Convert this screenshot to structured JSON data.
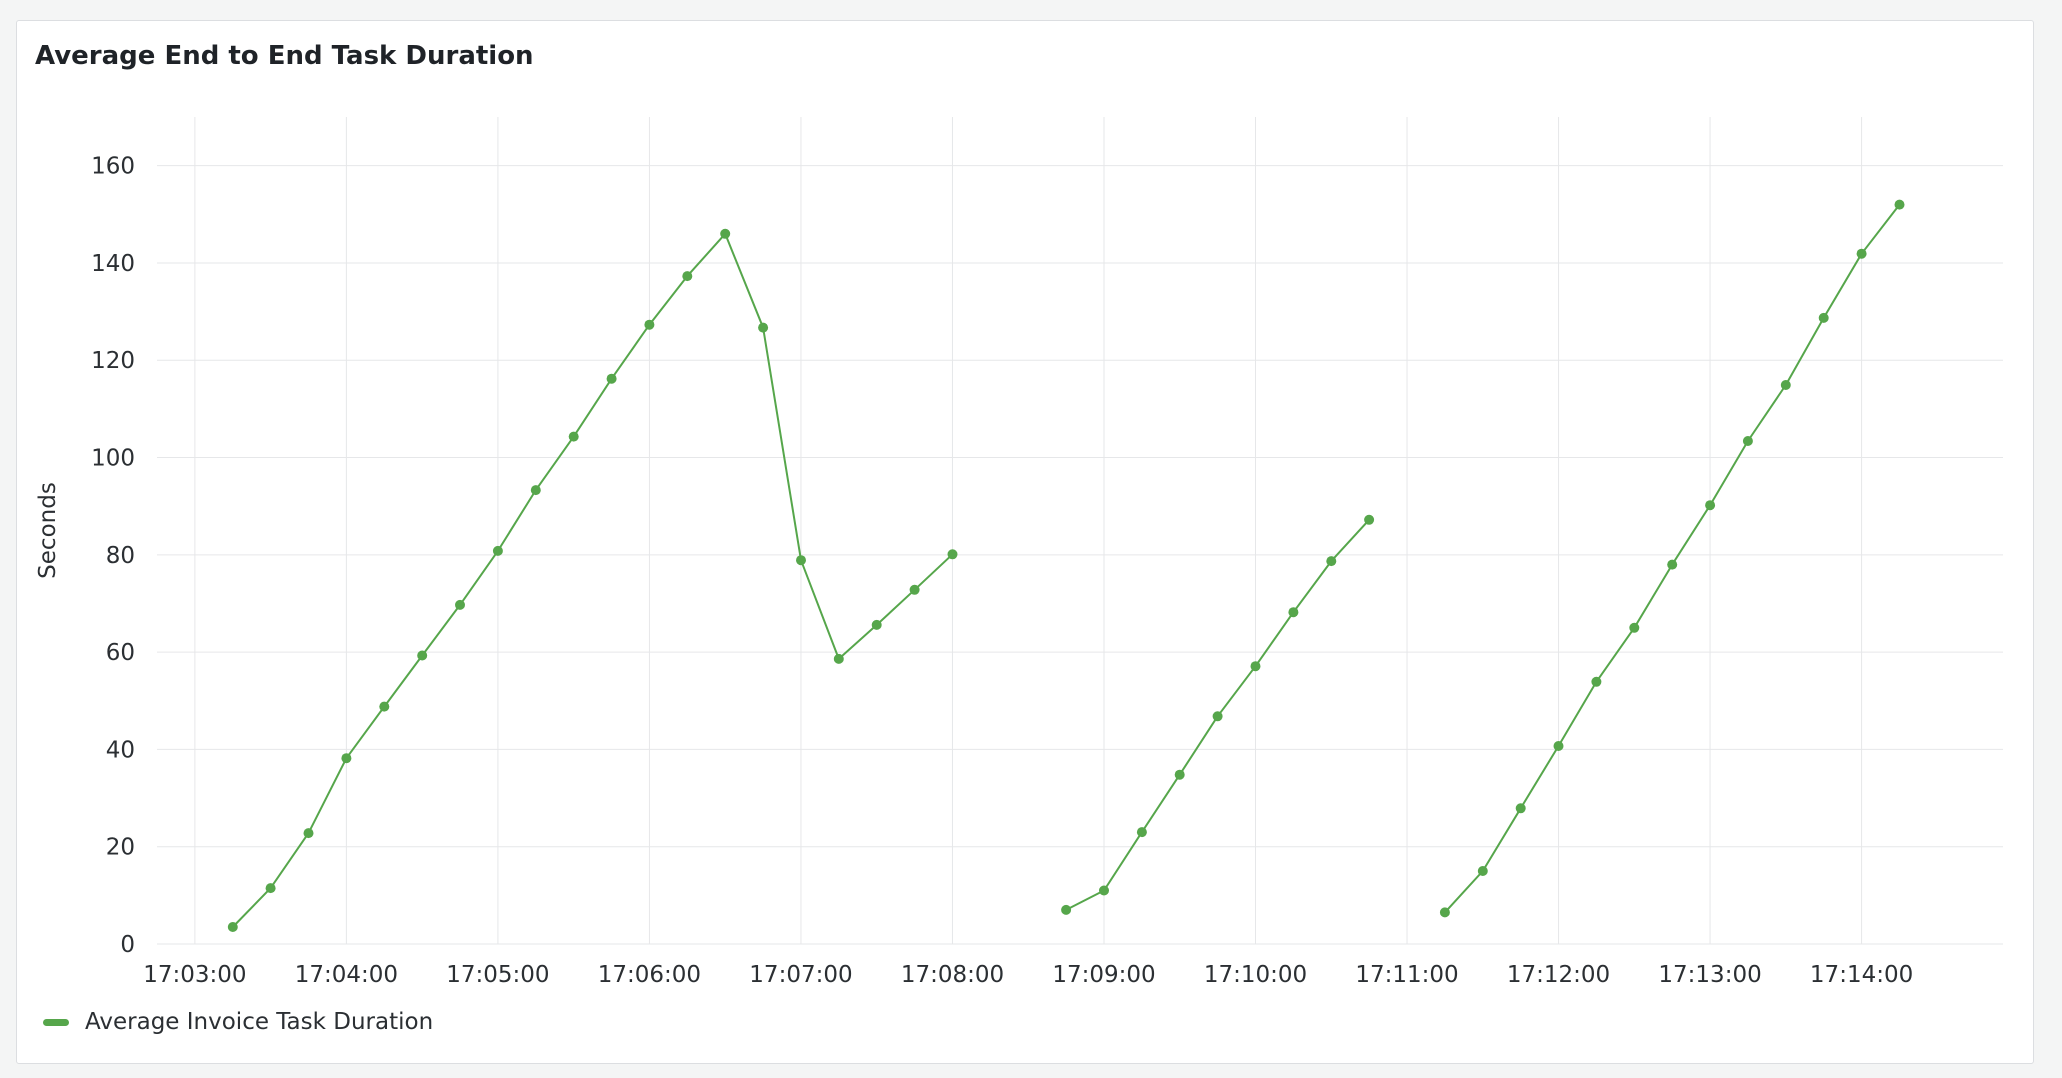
{
  "panel": {
    "title": "Average End to End Task Duration"
  },
  "colors": {
    "series": "#56a64b",
    "grid": "#e6e7e9"
  },
  "chart_data": {
    "type": "line",
    "title": "Average End to End Task Duration",
    "ylabel": "Seconds",
    "xlabel": "",
    "x_range": [
      "17:02:45",
      "17:14:56"
    ],
    "ylim": [
      0,
      170
    ],
    "y_ticks": [
      0,
      20,
      40,
      60,
      80,
      100,
      120,
      140,
      160
    ],
    "x_ticks": [
      "17:03:00",
      "17:04:00",
      "17:05:00",
      "17:06:00",
      "17:07:00",
      "17:08:00",
      "17:09:00",
      "17:10:00",
      "17:11:00",
      "17:12:00",
      "17:13:00",
      "17:14:00"
    ],
    "grid": true,
    "legend_position": "bottom-left",
    "series": [
      {
        "name": "Average Invoice Task Duration",
        "segments": [
          [
            {
              "x": "17:03:15",
              "y": 3.5
            },
            {
              "x": "17:03:30",
              "y": 11.5
            },
            {
              "x": "17:03:45",
              "y": 22.8
            },
            {
              "x": "17:04:00",
              "y": 38.2
            },
            {
              "x": "17:04:15",
              "y": 48.8
            },
            {
              "x": "17:04:30",
              "y": 59.3
            },
            {
              "x": "17:04:45",
              "y": 69.7
            },
            {
              "x": "17:05:00",
              "y": 80.8
            },
            {
              "x": "17:05:15",
              "y": 93.3
            },
            {
              "x": "17:05:30",
              "y": 104.3
            },
            {
              "x": "17:05:45",
              "y": 116.2
            },
            {
              "x": "17:06:00",
              "y": 127.3
            },
            {
              "x": "17:06:15",
              "y": 137.3
            },
            {
              "x": "17:06:30",
              "y": 146.0
            },
            {
              "x": "17:06:45",
              "y": 126.7
            },
            {
              "x": "17:07:00",
              "y": 78.9
            },
            {
              "x": "17:07:15",
              "y": 58.6
            },
            {
              "x": "17:07:30",
              "y": 65.6
            },
            {
              "x": "17:07:45",
              "y": 72.8
            },
            {
              "x": "17:08:00",
              "y": 80.1
            }
          ],
          [
            {
              "x": "17:08:45",
              "y": 7.0
            },
            {
              "x": "17:09:00",
              "y": 11.0
            },
            {
              "x": "17:09:15",
              "y": 23.0
            },
            {
              "x": "17:09:30",
              "y": 34.8
            },
            {
              "x": "17:09:45",
              "y": 46.8
            },
            {
              "x": "17:10:00",
              "y": 57.1
            },
            {
              "x": "17:10:15",
              "y": 68.2
            },
            {
              "x": "17:10:30",
              "y": 78.7
            },
            {
              "x": "17:10:45",
              "y": 87.2
            }
          ],
          [
            {
              "x": "17:11:15",
              "y": 6.5
            },
            {
              "x": "17:11:30",
              "y": 15.0
            },
            {
              "x": "17:11:45",
              "y": 27.9
            },
            {
              "x": "17:12:00",
              "y": 40.7
            },
            {
              "x": "17:12:15",
              "y": 53.9
            },
            {
              "x": "17:12:30",
              "y": 65.0
            },
            {
              "x": "17:12:45",
              "y": 78.0
            },
            {
              "x": "17:13:00",
              "y": 90.2
            },
            {
              "x": "17:13:15",
              "y": 103.4
            },
            {
              "x": "17:13:30",
              "y": 114.9
            },
            {
              "x": "17:13:45",
              "y": 128.7
            },
            {
              "x": "17:14:00",
              "y": 141.9
            },
            {
              "x": "17:14:15",
              "y": 152.0
            }
          ]
        ]
      }
    ]
  }
}
